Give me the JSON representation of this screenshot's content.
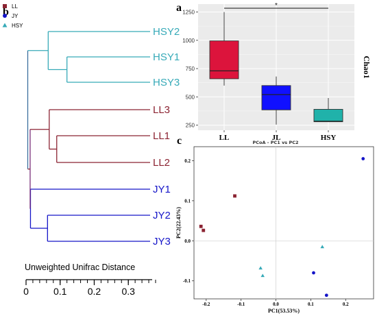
{
  "panel_labels": {
    "a": "a",
    "b": "b",
    "c": "c"
  },
  "colors": {
    "LL": "#8b2332",
    "JY": "#1414c8",
    "HSY": "#36aab8",
    "box_LL": "#dc143c",
    "box_JL": "#1010ff",
    "box_HSY": "#20b2aa",
    "plot_bg": "#ebebeb"
  },
  "chart_data": [
    {
      "type": "dendrogram",
      "panel": "b",
      "legend": [
        {
          "name": "LL",
          "marker": "square"
        },
        {
          "name": "JY",
          "marker": "circle"
        },
        {
          "name": "HSY",
          "marker": "triangle"
        }
      ],
      "leaves": [
        {
          "label": "HSY2",
          "group": "HSY"
        },
        {
          "label": "HSY1",
          "group": "HSY"
        },
        {
          "label": "HSY3",
          "group": "HSY"
        },
        {
          "label": "LL3",
          "group": "LL"
        },
        {
          "label": "LL1",
          "group": "LL"
        },
        {
          "label": "LL2",
          "group": "LL"
        },
        {
          "label": "JY1",
          "group": "JY"
        },
        {
          "label": "JY2",
          "group": "JY"
        },
        {
          "label": "JY3",
          "group": "JY"
        }
      ],
      "axis_title": "Unweighted Unifrac Distance",
      "axis_range": [
        0,
        0.37
      ],
      "axis_ticks": [
        0,
        0.1,
        0.2,
        0.3
      ],
      "axis_tick_labels": [
        "0",
        "0.1",
        "0.2",
        "0.3"
      ],
      "minor_tick_step": 0.02,
      "merge_heights": {
        "HSY1_HSY3": 0.12,
        "HSY2_HSY13": 0.065,
        "LL1_LL2": 0.09,
        "LL3_LL12": 0.068,
        "JY2_JY3": 0.063,
        "JY1_JY23": 0.013,
        "LL_JY": 0.012,
        "root": 0.005
      }
    },
    {
      "type": "box",
      "panel": "a",
      "categories": [
        "LL",
        "JL",
        "HSY"
      ],
      "ylabel": "Chao1",
      "ylim": [
        205,
        1320
      ],
      "yticks": [
        250,
        500,
        750,
        1000,
        1250
      ],
      "series": [
        {
          "category": "LL",
          "min": 600,
          "q1": 660,
          "median": 730,
          "q3": 995,
          "max": 1250
        },
        {
          "category": "JL",
          "min": 255,
          "q1": 385,
          "median": 520,
          "q3": 600,
          "max": 680
        },
        {
          "category": "HSY",
          "min": 280,
          "q1": 280,
          "median": 285,
          "q3": 390,
          "max": 490
        }
      ],
      "significance": {
        "from": "LL",
        "to": "HSY",
        "label": "*"
      }
    },
    {
      "type": "scatter",
      "panel": "c",
      "title": "PCoA - PC1 vs PC2",
      "xlabel": "PC1(53.53%)",
      "ylabel": "PC2(22.43%)",
      "xlim": [
        -0.235,
        0.28
      ],
      "ylim": [
        -0.145,
        0.235
      ],
      "xticks": [
        -0.2,
        -0.1,
        0.0,
        0.1,
        0.2
      ],
      "xtick_labels": [
        "-0.2",
        "-0.1",
        "0.0",
        "0.1",
        "0.2"
      ],
      "yticks": [
        -0.1,
        0.0,
        0.1,
        0.2
      ],
      "ytick_labels": [
        "-0.1",
        "0.0",
        "0.1",
        "0.2"
      ],
      "series": [
        {
          "group": "LL",
          "marker": "square",
          "points": [
            [
              -0.118,
              0.112
            ],
            [
              -0.215,
              0.036
            ],
            [
              -0.208,
              0.026
            ]
          ]
        },
        {
          "group": "JY",
          "marker": "circle",
          "points": [
            [
              0.25,
              0.205
            ],
            [
              0.108,
              -0.08
            ],
            [
              0.145,
              -0.136
            ]
          ]
        },
        {
          "group": "HSY",
          "marker": "triangle",
          "points": [
            [
              0.133,
              -0.015
            ],
            [
              -0.044,
              -0.068
            ],
            [
              -0.038,
              -0.087
            ]
          ]
        }
      ]
    }
  ]
}
